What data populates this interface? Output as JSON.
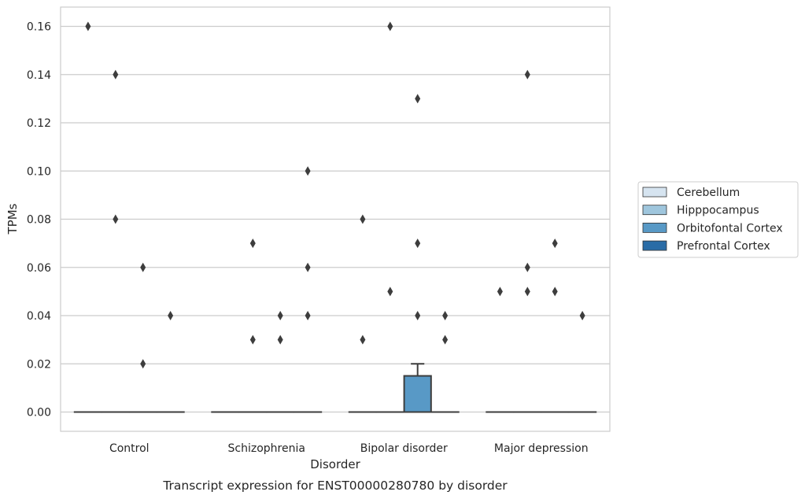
{
  "chart_data": {
    "type": "box",
    "xlabel": "Disorder",
    "ylabel": "TPMs",
    "caption": "Transcript expression for ENST00000280780 by disorder",
    "ylim": [
      -0.008,
      0.168
    ],
    "yticks": [
      "0.00",
      "0.02",
      "0.04",
      "0.06",
      "0.08",
      "0.10",
      "0.12",
      "0.14",
      "0.16"
    ],
    "ytick_values": [
      0,
      0.02,
      0.04,
      0.06,
      0.08,
      0.1,
      0.12,
      0.14,
      0.16
    ],
    "grid": "horizontal",
    "legend_position": "right",
    "categories": [
      "Control",
      "Schizophrenia",
      "Bipolar disorder",
      "Major depression"
    ],
    "series": [
      {
        "name": "Cerebellum",
        "color": "#d6e4f0",
        "boxes": [
          {
            "q1": 0,
            "median": 0,
            "q3": 0,
            "whisker_low": 0,
            "whisker_high": 0,
            "outliers": [
              0.16
            ]
          },
          {
            "q1": 0,
            "median": 0,
            "q3": 0,
            "whisker_low": 0,
            "whisker_high": 0,
            "outliers": []
          },
          {
            "q1": 0,
            "median": 0,
            "q3": 0,
            "whisker_low": 0,
            "whisker_high": 0,
            "outliers": [
              0.08,
              0.03
            ]
          },
          {
            "q1": 0,
            "median": 0,
            "q3": 0,
            "whisker_low": 0,
            "whisker_high": 0,
            "outliers": [
              0.05
            ]
          }
        ]
      },
      {
        "name": "Hipppocampus",
        "color": "#9fc6dd",
        "boxes": [
          {
            "q1": 0,
            "median": 0,
            "q3": 0,
            "whisker_low": 0,
            "whisker_high": 0,
            "outliers": [
              0.14,
              0.08
            ]
          },
          {
            "q1": 0,
            "median": 0,
            "q3": 0,
            "whisker_low": 0,
            "whisker_high": 0,
            "outliers": [
              0.07,
              0.03
            ]
          },
          {
            "q1": 0,
            "median": 0,
            "q3": 0,
            "whisker_low": 0,
            "whisker_high": 0,
            "outliers": [
              0.16,
              0.05
            ]
          },
          {
            "q1": 0,
            "median": 0,
            "q3": 0,
            "whisker_low": 0,
            "whisker_high": 0,
            "outliers": [
              0.14,
              0.06,
              0.05
            ]
          }
        ]
      },
      {
        "name": "Orbitofontal Cortex",
        "color": "#5899c6",
        "boxes": [
          {
            "q1": 0,
            "median": 0,
            "q3": 0,
            "whisker_low": 0,
            "whisker_high": 0,
            "outliers": [
              0.06,
              0.02
            ]
          },
          {
            "q1": 0,
            "median": 0,
            "q3": 0,
            "whisker_low": 0,
            "whisker_high": 0,
            "outliers": [
              0.04,
              0.03
            ]
          },
          {
            "q1": 0,
            "median": 0,
            "q3": 0.015,
            "whisker_low": 0,
            "whisker_high": 0.02,
            "outliers": [
              0.13,
              0.07,
              0.04
            ]
          },
          {
            "q1": 0,
            "median": 0,
            "q3": 0,
            "whisker_low": 0,
            "whisker_high": 0,
            "outliers": [
              0.07,
              0.05
            ]
          }
        ]
      },
      {
        "name": "Prefrontal Cortex",
        "color": "#2a6ca6",
        "boxes": [
          {
            "q1": 0,
            "median": 0,
            "q3": 0,
            "whisker_low": 0,
            "whisker_high": 0,
            "outliers": [
              0.04
            ]
          },
          {
            "q1": 0,
            "median": 0,
            "q3": 0,
            "whisker_low": 0,
            "whisker_high": 0,
            "outliers": [
              0.1,
              0.06,
              0.04
            ]
          },
          {
            "q1": 0,
            "median": 0,
            "q3": 0,
            "whisker_low": 0,
            "whisker_high": 0,
            "outliers": [
              0.04,
              0.03
            ]
          },
          {
            "q1": 0,
            "median": 0,
            "q3": 0,
            "whisker_low": 0,
            "whisker_high": 0,
            "outliers": [
              0.04
            ]
          }
        ]
      }
    ]
  }
}
